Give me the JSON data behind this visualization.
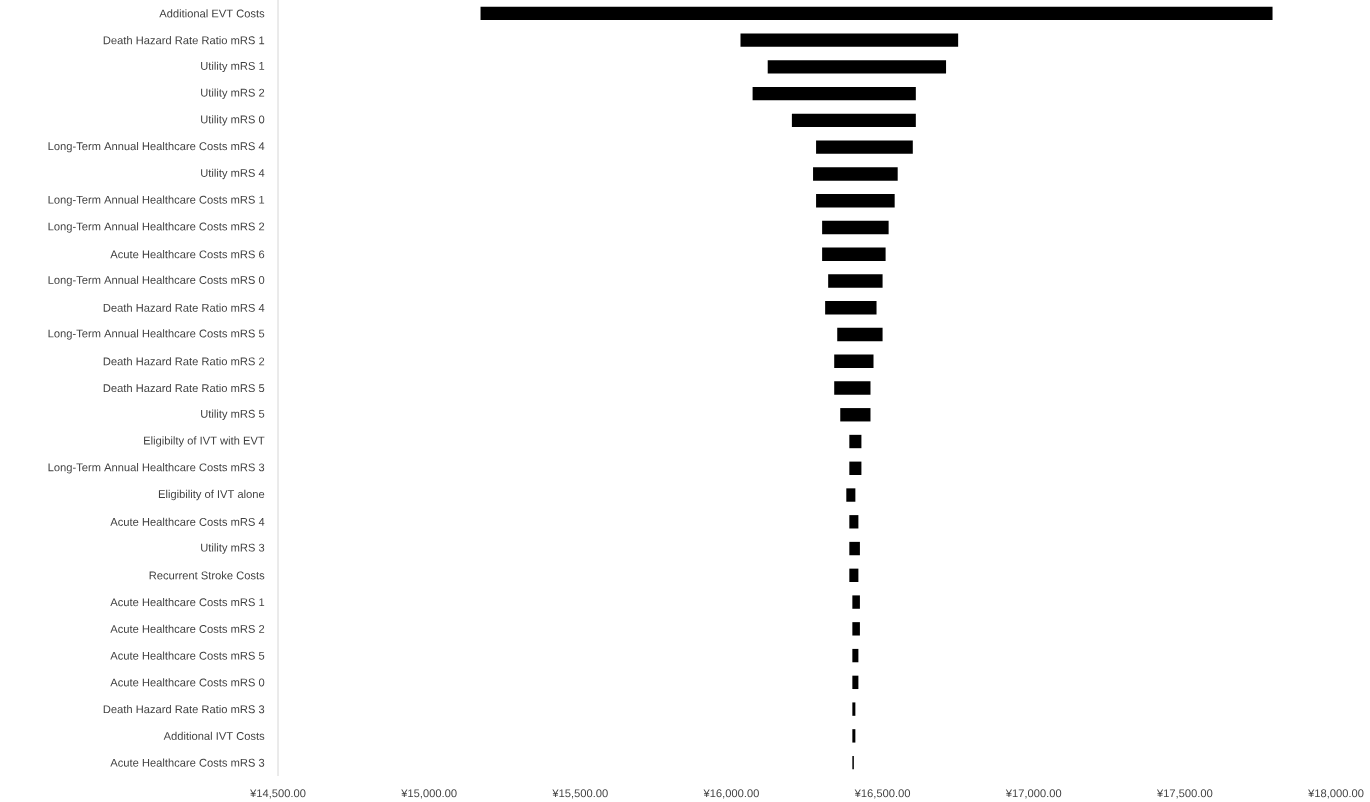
{
  "chart_data": {
    "type": "bar",
    "orientation": "horizontal",
    "categories": [
      "Additional EVT Costs",
      "Death Hazard Rate Ratio mRS 1",
      "Utility mRS 1",
      "Utility mRS 2",
      "Utility mRS 0",
      "Long-Term Annual Healthcare Costs mRS 4",
      "Utility mRS 4",
      "Long-Term Annual Healthcare Costs mRS 1",
      "Long-Term Annual Healthcare Costs mRS 2",
      "Acute Healthcare Costs mRS 6",
      "Long-Term Annual Healthcare Costs mRS 0",
      "Death Hazard Rate Ratio mRS 4",
      "Long-Term Annual Healthcare Costs mRS 5",
      "Death Hazard Rate Ratio mRS 2",
      "Death Hazard Rate Ratio mRS 5",
      "Utility mRS 5",
      "Eligibilty of IVT with EVT",
      "Long-Term Annual Healthcare Costs mRS 3",
      "Eligibility of IVT alone",
      "Acute Healthcare Costs mRS 4",
      "Utility mRS 3",
      "Recurrent Stroke Costs",
      "Acute Healthcare Costs mRS 1",
      "Acute Healthcare Costs mRS 2",
      "Acute Healthcare Costs mRS 5",
      "Acute Healthcare Costs mRS 0",
      "Death Hazard Rate Ratio mRS 3",
      "Additional IVT Costs",
      "Acute Healthcare Costs mRS 3"
    ],
    "base": [
      15170,
      16030,
      16120,
      16070,
      16200,
      16280,
      16270,
      16280,
      16300,
      16300,
      16320,
      16310,
      16350,
      16340,
      16340,
      16360,
      16390,
      16390,
      16380,
      16390,
      16390,
      16390,
      16400,
      16400,
      16400,
      16400,
      16400,
      16400,
      16400
    ],
    "values": [
      2620,
      720,
      590,
      540,
      410,
      320,
      280,
      260,
      220,
      210,
      180,
      170,
      150,
      130,
      120,
      100,
      40,
      40,
      30,
      30,
      35,
      30,
      25,
      25,
      20,
      20,
      10,
      10,
      5
    ],
    "color": "#000000",
    "xlim": [
      14500,
      18000
    ],
    "xticks": [
      {
        "value": 14500,
        "label": "¥14,500.00"
      },
      {
        "value": 15000,
        "label": "¥15,000.00"
      },
      {
        "value": 15500,
        "label": "¥15,500.00"
      },
      {
        "value": 16000,
        "label": "¥16,000.00"
      },
      {
        "value": 16500,
        "label": "¥16,500.00"
      },
      {
        "value": 17000,
        "label": "¥17,000.00"
      },
      {
        "value": 17500,
        "label": "¥17,500.00"
      },
      {
        "value": 18000,
        "label": "¥18,000.00"
      }
    ]
  }
}
